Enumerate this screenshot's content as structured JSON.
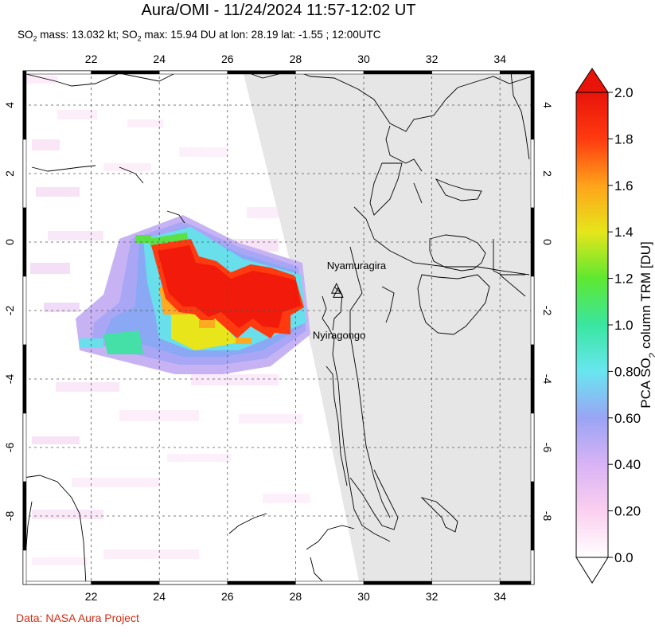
{
  "title": "Aura/OMI - 11/24/2024 11:57-12:02 UT",
  "subtitle": {
    "mass_label": "SO",
    "mass_sub": "2",
    "mass_text": " mass: 13.032 kt; SO",
    "max_sub": "2",
    "max_text": " max: 15.94 DU at lon: 28.19 lat: -1.55 ; 12:00UTC"
  },
  "credit": "Data: NASA Aura Project",
  "map": {
    "lon_range": [
      20,
      35
    ],
    "lat_range": [
      -10,
      5
    ],
    "lon_ticks": [
      "22",
      "24",
      "26",
      "28",
      "30",
      "32",
      "34"
    ],
    "lat_ticks": [
      "4",
      "2",
      "0",
      "-2",
      "-4",
      "-6",
      "-8"
    ],
    "grid": "dashed",
    "no_data_color": "#e6e6e6"
  },
  "volcanoes": [
    {
      "name": "Nyamuragira",
      "lon": 29.2,
      "lat": -1.4
    },
    {
      "name": "Nyiragongo",
      "lon": 29.25,
      "lat": -1.52
    }
  ],
  "colorbar": {
    "label_prefix": "PCA SO",
    "label_sub": "2",
    "label_suffix": " column TRM [DU]",
    "ticks": [
      "2.0",
      "1.8",
      "1.6",
      "1.4",
      "1.2",
      "1.0",
      "0.80",
      "0.60",
      "0.40",
      "0.20",
      "0.0"
    ],
    "colors": [
      "#ffffff",
      "#fbcff0",
      "#d9b3f5",
      "#9aa4f5",
      "#68e6f0",
      "#39e6a0",
      "#5ee830",
      "#e6e61a",
      "#ffa31a",
      "#ff3a0f",
      "#e8140a"
    ]
  }
}
